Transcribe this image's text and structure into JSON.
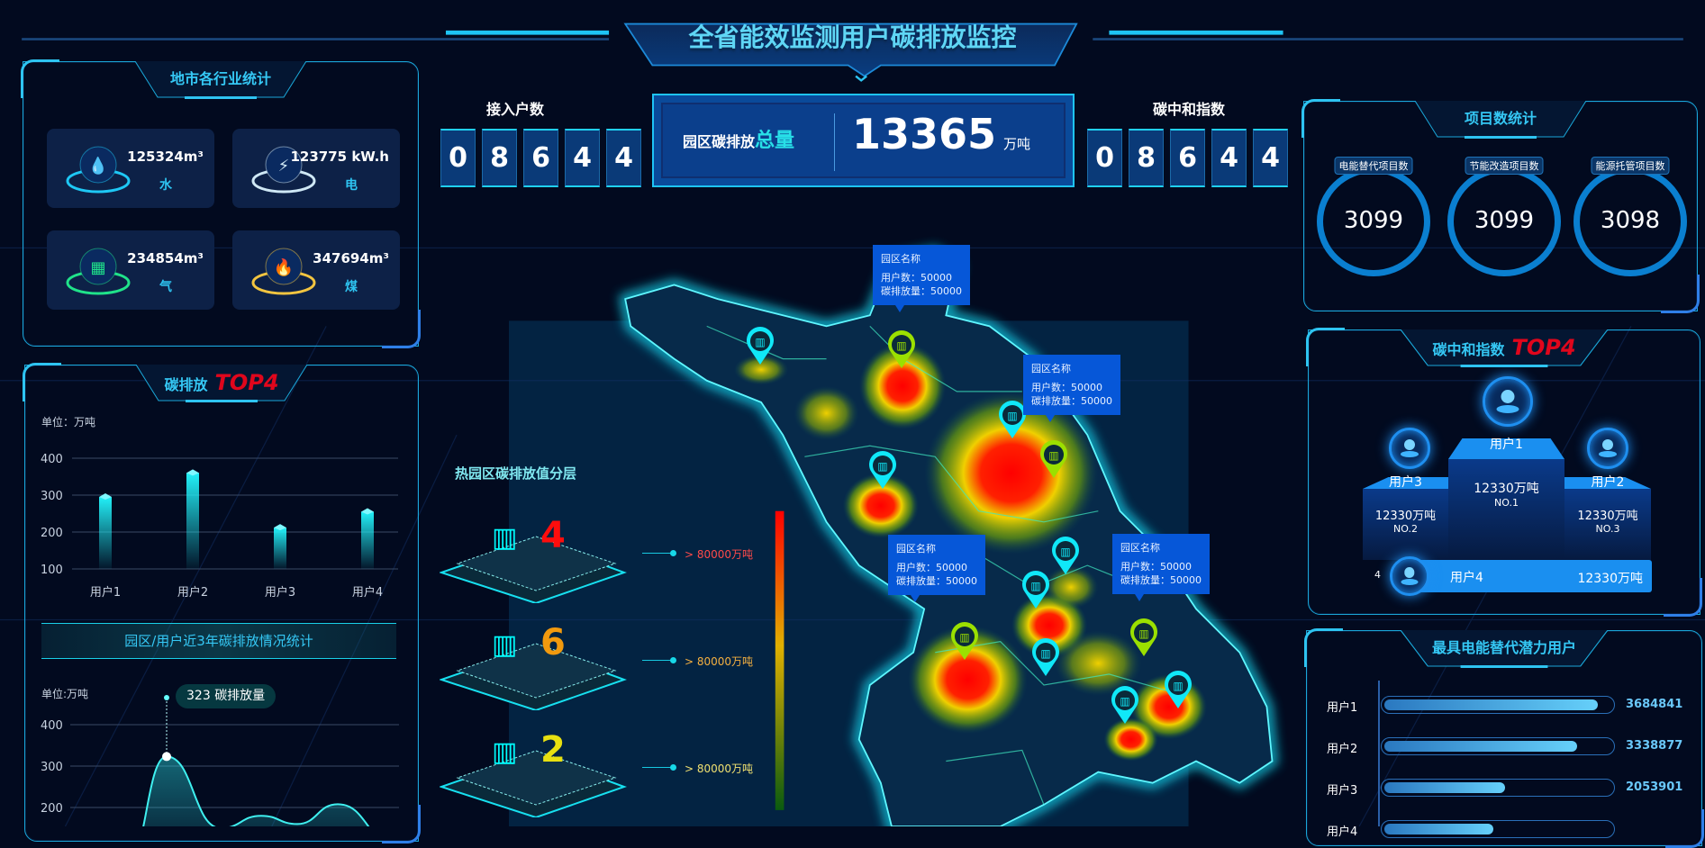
{
  "header": {
    "title": "全省能效监测用户碳排放监控"
  },
  "city_stats": {
    "title": "地市各行业统计",
    "items": [
      {
        "value": "125324m³",
        "label": "水",
        "icon": "water-drop-icon",
        "color": "#1ec8f5"
      },
      {
        "value": "123775 kW.h",
        "label": "电",
        "icon": "lightning-icon",
        "color": "#cfe8f5"
      },
      {
        "value": "234854m³",
        "label": "气",
        "icon": "gas-icon",
        "color": "#20e38a"
      },
      {
        "value": "347694m³",
        "label": "煤",
        "icon": "flame-icon",
        "color": "#f3c540"
      }
    ]
  },
  "carbon_top4": {
    "title": "碳排放",
    "badge": "TOP4",
    "unit": "单位：万吨",
    "chart_data": {
      "type": "bar",
      "categories": [
        "用户1",
        "用户2",
        "用户3",
        "用户4"
      ],
      "values": [
        295,
        360,
        212,
        255
      ],
      "ylim": [
        100,
        400
      ],
      "yticks": [
        100,
        200,
        300,
        400
      ]
    }
  },
  "trend": {
    "banner": "园区/用户近3年碳排放情况统计",
    "unit": "单位:万吨",
    "tooltip_value": "323",
    "tooltip_label": "碳排放量",
    "chart_data": {
      "type": "area",
      "values": [
        60,
        323,
        150,
        180,
        160,
        208,
        110
      ],
      "ylim": [
        100,
        400
      ],
      "yticks": [
        200,
        300,
        400
      ]
    }
  },
  "access": {
    "label": "接入户数",
    "digits": [
      "0",
      "8",
      "6",
      "4",
      "4"
    ]
  },
  "total": {
    "label": "园区碳排放",
    "label_highlight": "总量",
    "value": "13365",
    "unit": "万吨"
  },
  "neutral_index": {
    "label": "碳中和指数",
    "digits": [
      "0",
      "8",
      "6",
      "4",
      "4"
    ]
  },
  "layers": {
    "title": "热园区碳排放值分层",
    "items": [
      {
        "count": "4",
        "color": "#ff0d0d",
        "range": "> 80000万吨",
        "range_color": "#ff4a4a"
      },
      {
        "count": "6",
        "color": "#f29a0e",
        "range": "> 80000万吨",
        "range_color": "#f5b040"
      },
      {
        "count": "2",
        "color": "#e8e010",
        "range": "> 80000万吨",
        "range_color": "#f0e070"
      }
    ]
  },
  "map": {
    "tooltips": [
      {
        "name": "园区名称",
        "users_label": "用户数：",
        "users": "50000",
        "emis_label": "碳排放量：",
        "emis": "50000"
      },
      {
        "name": "园区名称",
        "users_label": "用户数：",
        "users": "50000",
        "emis_label": "碳排放量：",
        "emis": "50000"
      },
      {
        "name": "园区名称",
        "users_label": "用户数：",
        "users": "50000",
        "emis_label": "碳排放量：",
        "emis": "50000"
      },
      {
        "name": "园区名称",
        "users_label": "用户数：",
        "users": "50000",
        "emis_label": "碳排放量：",
        "emis": "50000"
      }
    ]
  },
  "projects": {
    "title": "项目数统计",
    "items": [
      {
        "label": "电能替代项目数",
        "value": "3099"
      },
      {
        "label": "节能改造项目数",
        "value": "3099"
      },
      {
        "label": "能源托管项目数",
        "value": "3098"
      }
    ]
  },
  "neutral_top4": {
    "title": "碳中和指数",
    "badge": "TOP4",
    "first": {
      "name": "用户1",
      "value": "12330万吨",
      "rank": "NO.1"
    },
    "second": {
      "name": "用户3",
      "value": "12330万吨",
      "rank": "NO.2"
    },
    "third": {
      "name": "用户2",
      "value": "12330万吨",
      "rank": "NO.3"
    },
    "fourth": {
      "rank": "4",
      "name": "用户4",
      "value": "12330万吨"
    }
  },
  "potential": {
    "title": "最具电能替代潜力用户",
    "items": [
      {
        "name": "用户1",
        "value": "3684841",
        "fraction": 0.94
      },
      {
        "name": "用户2",
        "value": "3338877",
        "fraction": 0.85
      },
      {
        "name": "用户3",
        "value": "2053901",
        "fraction": 0.53
      },
      {
        "name": "用户4",
        "value": "",
        "fraction": 0.48
      }
    ]
  }
}
